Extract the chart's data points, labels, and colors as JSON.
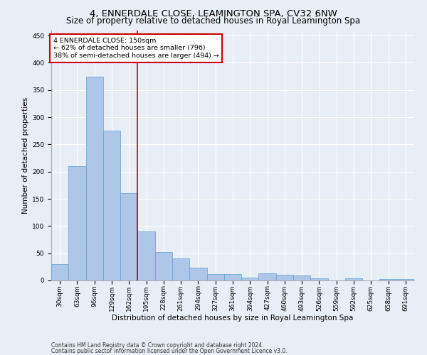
{
  "title": "4, ENNERDALE CLOSE, LEAMINGTON SPA, CV32 6NW",
  "subtitle": "Size of property relative to detached houses in Royal Leamington Spa",
  "xlabel": "Distribution of detached houses by size in Royal Leamington Spa",
  "ylabel": "Number of detached properties",
  "footnote1": "Contains HM Land Registry data © Crown copyright and database right 2024.",
  "footnote2": "Contains public sector information licensed under the Open Government Licence v3.0.",
  "bar_labels": [
    "30sqm",
    "63sqm",
    "96sqm",
    "129sqm",
    "162sqm",
    "195sqm",
    "228sqm",
    "261sqm",
    "294sqm",
    "327sqm",
    "361sqm",
    "394sqm",
    "427sqm",
    "460sqm",
    "493sqm",
    "526sqm",
    "559sqm",
    "592sqm",
    "625sqm",
    "658sqm",
    "691sqm"
  ],
  "bar_values": [
    30,
    210,
    375,
    275,
    160,
    90,
    52,
    40,
    23,
    12,
    12,
    5,
    13,
    10,
    9,
    4,
    0,
    4,
    0,
    3,
    3
  ],
  "bar_color": "#aec6e8",
  "bar_edge_color": "#5a9fd4",
  "bar_width": 1.0,
  "red_line_x": 4.48,
  "annotation_line1": "4 ENNERDALE CLOSE: 150sqm",
  "annotation_line2": "← 62% of detached houses are smaller (796)",
  "annotation_line3": "38% of semi-detached houses are larger (494) →",
  "annotation_box_color": "#ffffff",
  "annotation_box_edge": "#cc0000",
  "ylim": [
    0,
    460
  ],
  "yticks": [
    0,
    50,
    100,
    150,
    200,
    250,
    300,
    350,
    400,
    450
  ],
  "bg_color": "#e8eef5",
  "grid_color": "#ffffff",
  "title_fontsize": 9.5,
  "subtitle_fontsize": 8.5,
  "axis_label_fontsize": 7.5,
  "tick_fontsize": 6.5,
  "ylabel_fontsize": 7.5,
  "annotation_fontsize": 6.8,
  "footnote_fontsize": 5.5
}
